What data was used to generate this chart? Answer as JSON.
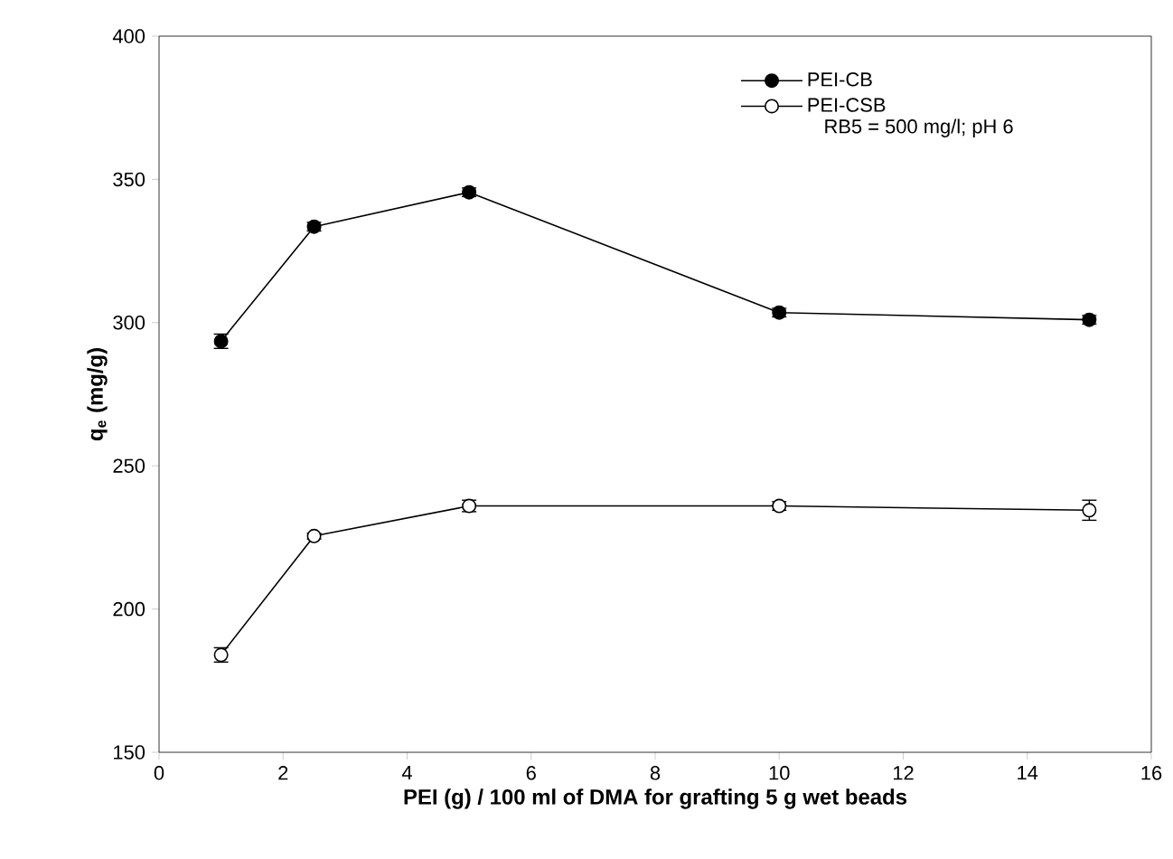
{
  "chart_data": {
    "type": "line",
    "xlabel": "PEI (g) / 100 ml of DMA for grafting 5 g wet beads",
    "ylabel": "q$_{e}$ (mg/g)",
    "x": [
      1,
      2.5,
      5,
      10,
      15
    ],
    "series": [
      {
        "name": "PEI-CB",
        "color": "#000000",
        "marker": "circle",
        "values": [
          293.5,
          333.5,
          345.5,
          303.5,
          301
        ],
        "errors": [
          2.5,
          1.5,
          1.5,
          1.5,
          1.5
        ]
      },
      {
        "name": "PEI-CSB",
        "color": "#000000",
        "marker": "circle",
        "values": [
          184,
          225.5,
          236,
          236,
          234.5
        ],
        "errors": [
          2.5,
          1,
          2,
          1.5,
          3.5
        ]
      }
    ],
    "annotations": [
      "RB5 = 500 mg/l; pH 6"
    ],
    "xlim": [
      0,
      16
    ],
    "xticks": [
      0,
      2,
      4,
      6,
      8,
      10,
      12,
      14,
      16
    ],
    "ylim": [
      150,
      400
    ],
    "yticks": [
      150,
      200,
      250,
      300,
      350,
      400
    ],
    "legend": "top right",
    "grid": false,
    "line_style": "solid"
  }
}
